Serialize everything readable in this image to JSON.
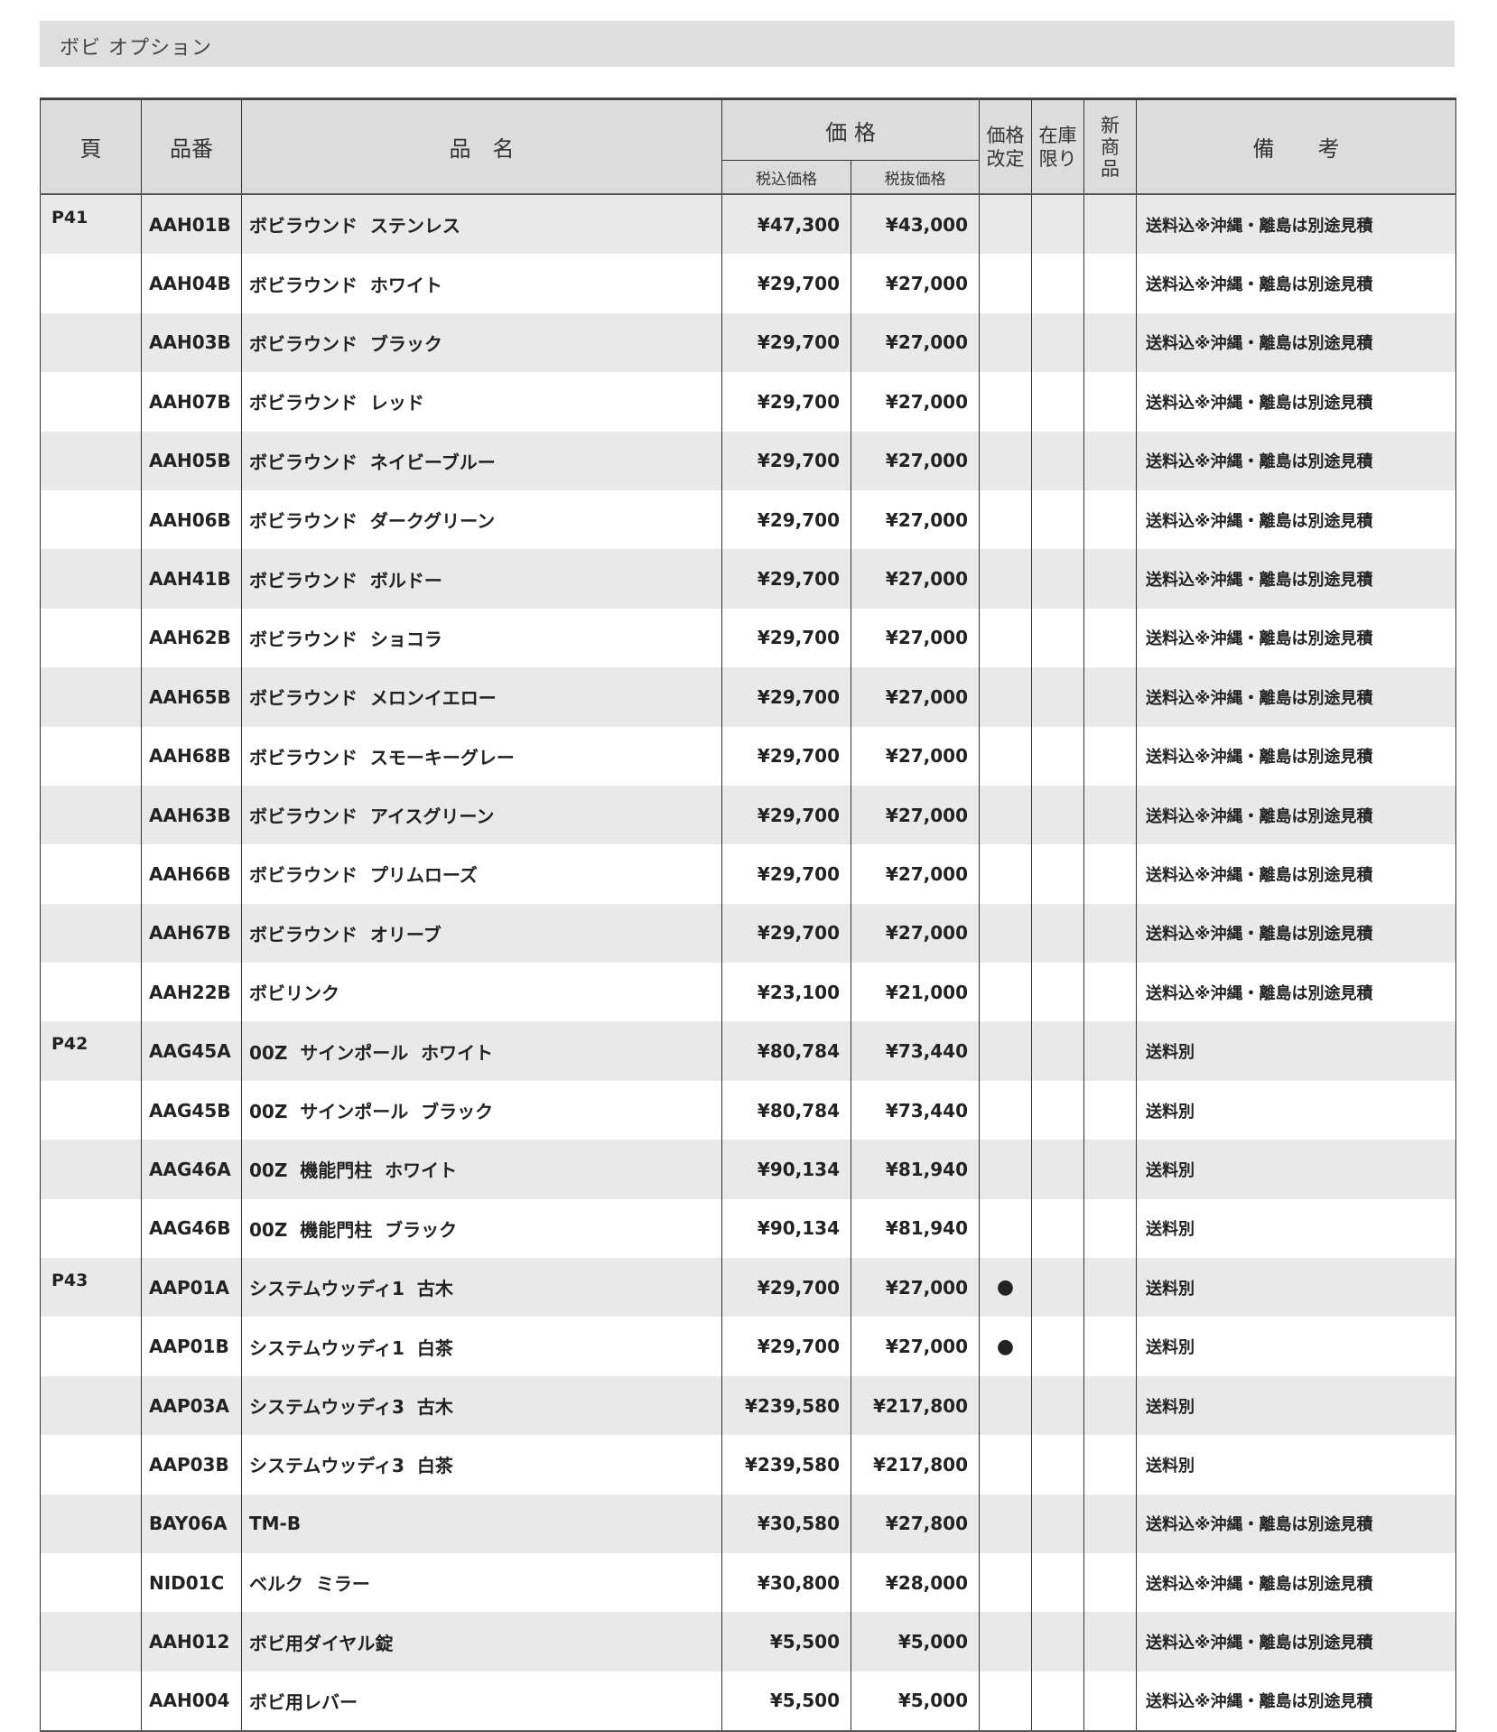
{
  "title": "ボビ オプション",
  "headers": {
    "page": "頁",
    "code": "品番",
    "name": "品　名",
    "price": "価 格",
    "price_incl": "税込価格",
    "price_excl": "税抜価格",
    "revised": "価格\n改定",
    "stock": "在庫\n限り",
    "new": "新\n商\n品",
    "notes": "備　　考"
  },
  "rows": [
    {
      "page": "P41",
      "code": "AAH01B",
      "name": "ボビラウンド  ステンレス",
      "incl": "¥47,300",
      "excl": "¥43,000",
      "revised": "",
      "note": "送料込※沖縄・離島は別途見積"
    },
    {
      "page": "",
      "code": "AAH04B",
      "name": "ボビラウンド  ホワイト",
      "incl": "¥29,700",
      "excl": "¥27,000",
      "revised": "",
      "note": "送料込※沖縄・離島は別途見積"
    },
    {
      "page": "",
      "code": "AAH03B",
      "name": "ボビラウンド  ブラック",
      "incl": "¥29,700",
      "excl": "¥27,000",
      "revised": "",
      "note": "送料込※沖縄・離島は別途見積"
    },
    {
      "page": "",
      "code": "AAH07B",
      "name": "ボビラウンド  レッド",
      "incl": "¥29,700",
      "excl": "¥27,000",
      "revised": "",
      "note": "送料込※沖縄・離島は別途見積"
    },
    {
      "page": "",
      "code": "AAH05B",
      "name": "ボビラウンド  ネイビーブルー",
      "incl": "¥29,700",
      "excl": "¥27,000",
      "revised": "",
      "note": "送料込※沖縄・離島は別途見積"
    },
    {
      "page": "",
      "code": "AAH06B",
      "name": "ボビラウンド  ダークグリーン",
      "incl": "¥29,700",
      "excl": "¥27,000",
      "revised": "",
      "note": "送料込※沖縄・離島は別途見積"
    },
    {
      "page": "",
      "code": "AAH41B",
      "name": "ボビラウンド  ボルドー",
      "incl": "¥29,700",
      "excl": "¥27,000",
      "revised": "",
      "note": "送料込※沖縄・離島は別途見積"
    },
    {
      "page": "",
      "code": "AAH62B",
      "name": "ボビラウンド  ショコラ",
      "incl": "¥29,700",
      "excl": "¥27,000",
      "revised": "",
      "note": "送料込※沖縄・離島は別途見積"
    },
    {
      "page": "",
      "code": "AAH65B",
      "name": "ボビラウンド  メロンイエロー",
      "incl": "¥29,700",
      "excl": "¥27,000",
      "revised": "",
      "note": "送料込※沖縄・離島は別途見積"
    },
    {
      "page": "",
      "code": "AAH68B",
      "name": "ボビラウンド  スモーキーグレー",
      "incl": "¥29,700",
      "excl": "¥27,000",
      "revised": "",
      "note": "送料込※沖縄・離島は別途見積"
    },
    {
      "page": "",
      "code": "AAH63B",
      "name": "ボビラウンド  アイスグリーン",
      "incl": "¥29,700",
      "excl": "¥27,000",
      "revised": "",
      "note": "送料込※沖縄・離島は別途見積"
    },
    {
      "page": "",
      "code": "AAH66B",
      "name": "ボビラウンド  プリムローズ",
      "incl": "¥29,700",
      "excl": "¥27,000",
      "revised": "",
      "note": "送料込※沖縄・離島は別途見積"
    },
    {
      "page": "",
      "code": "AAH67B",
      "name": "ボビラウンド  オリーブ",
      "incl": "¥29,700",
      "excl": "¥27,000",
      "revised": "",
      "note": "送料込※沖縄・離島は別途見積"
    },
    {
      "page": "",
      "code": "AAH22B",
      "name": "ボビリンク",
      "incl": "¥23,100",
      "excl": "¥21,000",
      "revised": "",
      "note": "送料込※沖縄・離島は別途見積"
    },
    {
      "page": "P42",
      "code": "AAG45A",
      "name": "00Z  サインポール  ホワイト",
      "incl": "¥80,784",
      "excl": "¥73,440",
      "revised": "",
      "note": "送料別"
    },
    {
      "page": "",
      "code": "AAG45B",
      "name": "00Z  サインポール  ブラック",
      "incl": "¥80,784",
      "excl": "¥73,440",
      "revised": "",
      "note": "送料別"
    },
    {
      "page": "",
      "code": "AAG46A",
      "name": "00Z  機能門柱  ホワイト",
      "incl": "¥90,134",
      "excl": "¥81,940",
      "revised": "",
      "note": "送料別"
    },
    {
      "page": "",
      "code": "AAG46B",
      "name": "00Z  機能門柱  ブラック",
      "incl": "¥90,134",
      "excl": "¥81,940",
      "revised": "",
      "note": "送料別"
    },
    {
      "page": "P43",
      "code": "AAP01A",
      "name": "システムウッディ1  古木",
      "incl": "¥29,700",
      "excl": "¥27,000",
      "revised": "●",
      "note": "送料別"
    },
    {
      "page": "",
      "code": "AAP01B",
      "name": "システムウッディ1  白茶",
      "incl": "¥29,700",
      "excl": "¥27,000",
      "revised": "●",
      "note": "送料別"
    },
    {
      "page": "",
      "code": "AAP03A",
      "name": "システムウッディ3  古木",
      "incl": "¥239,580",
      "excl": "¥217,800",
      "revised": "",
      "note": "送料別"
    },
    {
      "page": "",
      "code": "AAP03B",
      "name": "システムウッディ3  白茶",
      "incl": "¥239,580",
      "excl": "¥217,800",
      "revised": "",
      "note": "送料別"
    },
    {
      "page": "",
      "code": "BAY06A",
      "name": "TM-B",
      "incl": "¥30,580",
      "excl": "¥27,800",
      "revised": "",
      "note": "送料込※沖縄・離島は別途見積"
    },
    {
      "page": "",
      "code": "NID01C",
      "name": "ベルク  ミラー",
      "incl": "¥30,800",
      "excl": "¥28,000",
      "revised": "",
      "note": "送料込※沖縄・離島は別途見積"
    },
    {
      "page": "",
      "code": "AAH012",
      "name": "ボビ用ダイヤル錠",
      "incl": "¥5,500",
      "excl": "¥5,000",
      "revised": "",
      "note": "送料込※沖縄・離島は別途見積"
    },
    {
      "page": "",
      "code": "AAH004",
      "name": "ボビ用レバー",
      "incl": "¥5,500",
      "excl": "¥5,000",
      "revised": "",
      "note": "送料込※沖縄・離島は別途見積"
    }
  ]
}
